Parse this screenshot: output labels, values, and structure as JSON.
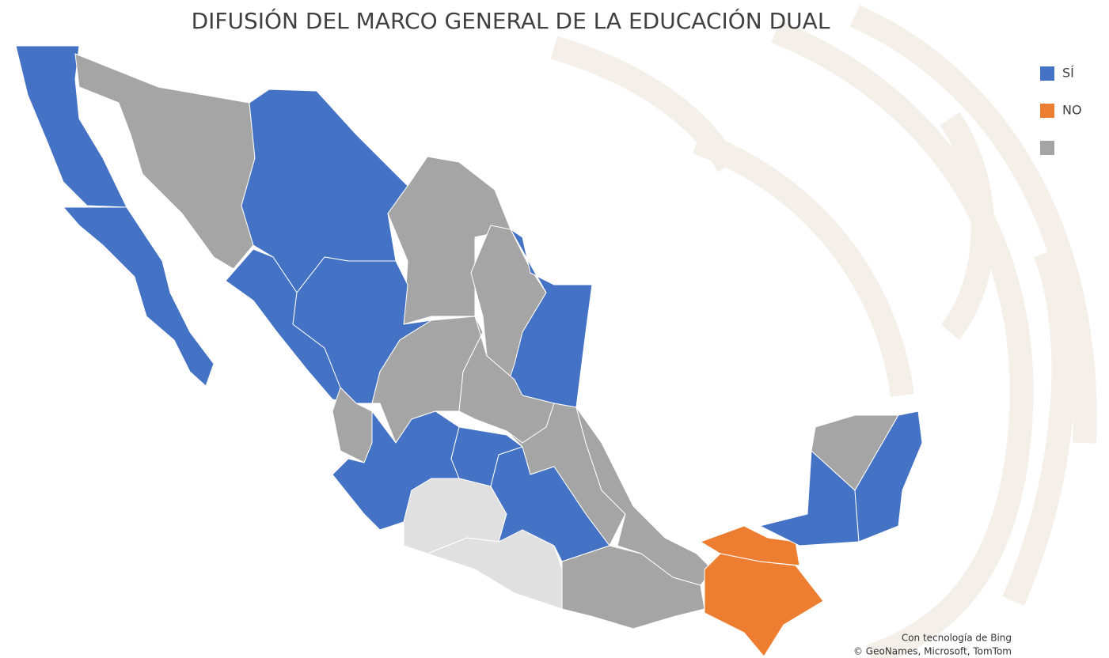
{
  "title": "DIFUSIÓN DEL MARCO GENERAL DE LA EDUCACIÓN DUAL",
  "legend": [
    {
      "label": "SÍ",
      "color": "#4472c4"
    },
    {
      "label": "NO",
      "color": "#ed7d31"
    },
    {
      "label": null,
      "color": "#a5a5a5"
    }
  ],
  "attribution": [
    "Con tecnología de Bing",
    "© GeoNames, Microsoft, TomTom"
  ]
}
